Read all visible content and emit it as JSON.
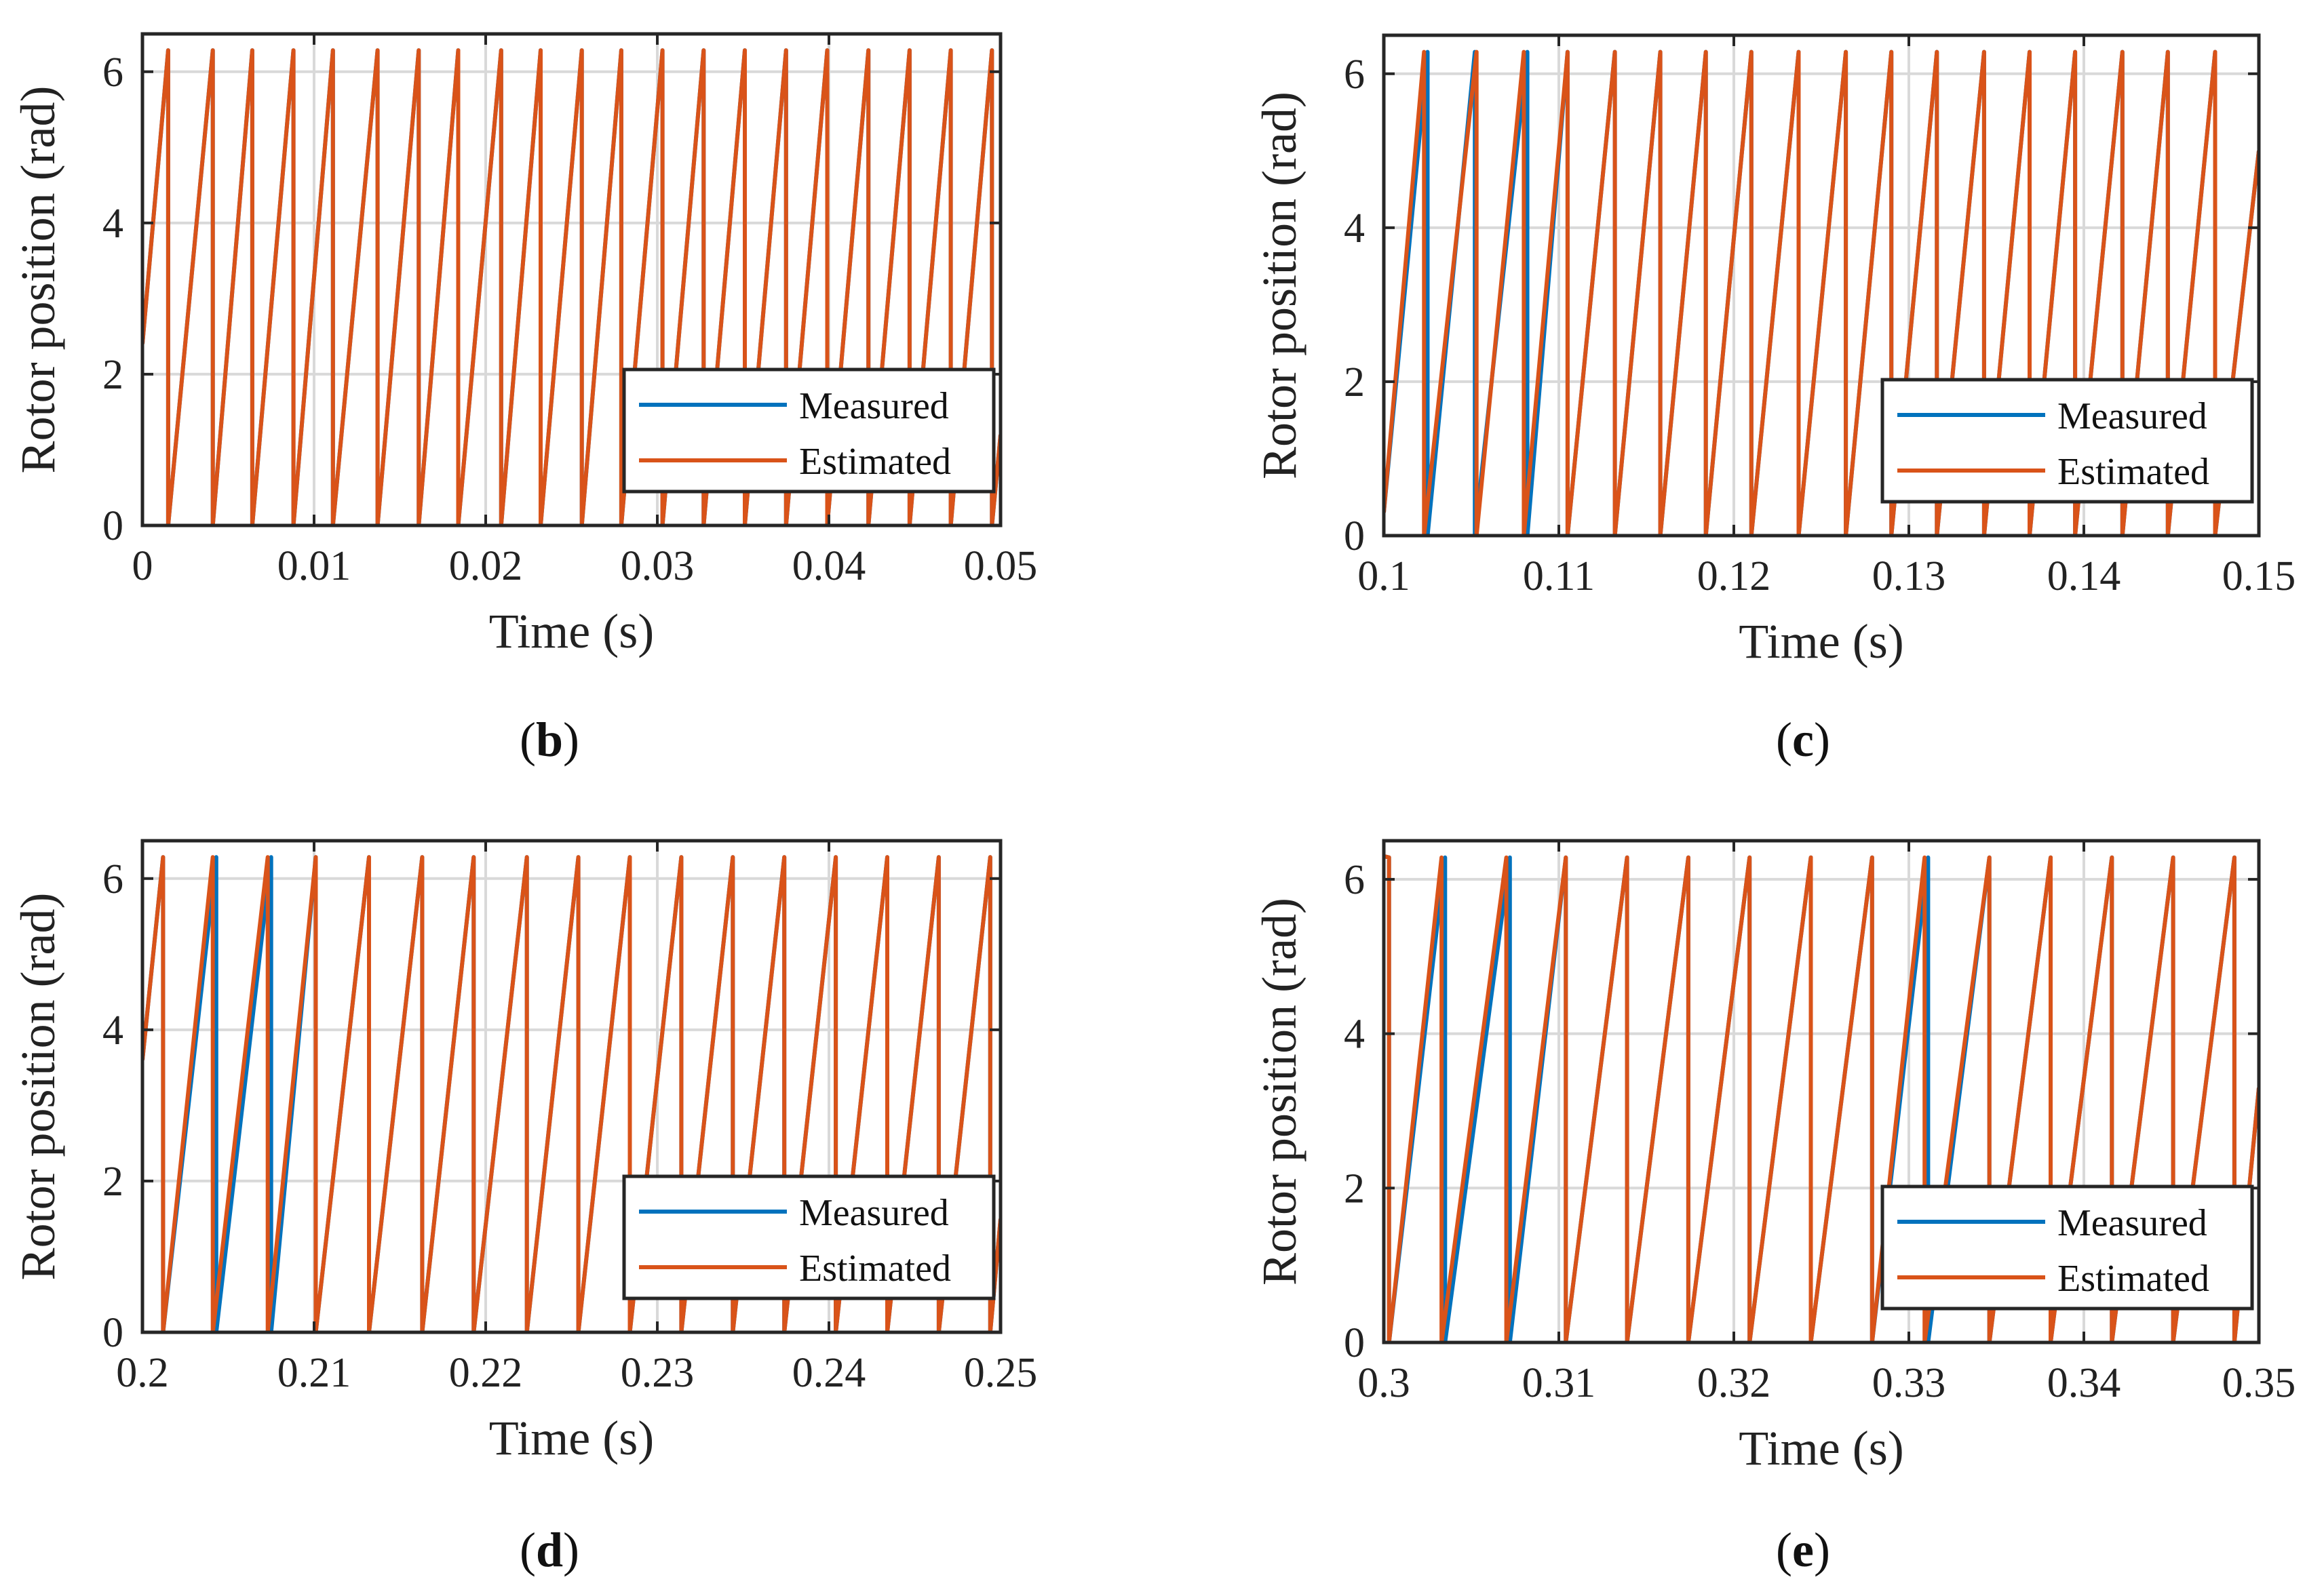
{
  "colors": {
    "measured": "#0072BD",
    "estimated": "#D95319",
    "grid": "#d9d9d9",
    "axes": "#262626"
  },
  "chart_data": [
    {
      "type": "line",
      "panel": "b",
      "xlabel": "Time (s)",
      "ylabel": "Rotor position (rad)",
      "xlim": [
        0,
        0.05
      ],
      "ylim": [
        0,
        6.5
      ],
      "xticks": [
        0,
        0.01,
        0.02,
        0.03,
        0.04,
        0.05
      ],
      "xtick_labels": [
        "0",
        "0.01",
        "0.02",
        "0.03",
        "0.04",
        "0.05"
      ],
      "yticks": [
        0,
        2,
        4,
        6
      ],
      "ytick_labels": [
        "0",
        "2",
        "4",
        "6"
      ],
      "legend": [
        "Measured",
        "Estimated"
      ],
      "legend_position": "bottom-right",
      "series": [
        {
          "name": "Measured",
          "start_value": 2.4,
          "end_value": 1.2,
          "wraps": [
            0.0015,
            0.0041,
            0.0064,
            0.0088,
            0.0111,
            0.0137,
            0.0161,
            0.0184,
            0.0209,
            0.0232,
            0.0256,
            0.0279,
            0.0303,
            0.0327,
            0.0351,
            0.0375,
            0.0399,
            0.0423,
            0.0447,
            0.0471,
            0.0495
          ]
        },
        {
          "name": "Estimated",
          "start_value": 2.4,
          "end_value": 1.2,
          "wraps": [
            0.0015,
            0.0041,
            0.0064,
            0.0088,
            0.0111,
            0.0137,
            0.0161,
            0.0184,
            0.0209,
            0.0232,
            0.0256,
            0.0279,
            0.0303,
            0.0327,
            0.0351,
            0.0375,
            0.0399,
            0.0423,
            0.0447,
            0.0471,
            0.0495
          ]
        }
      ]
    },
    {
      "type": "line",
      "panel": "c",
      "xlabel": "Time (s)",
      "ylabel": "Rotor position (rad)",
      "xlim": [
        0.1,
        0.15
      ],
      "ylim": [
        0,
        6.5
      ],
      "xticks": [
        0.1,
        0.11,
        0.12,
        0.13,
        0.14,
        0.15
      ],
      "xtick_labels": [
        "0.1",
        "0.11",
        "0.12",
        "0.13",
        "0.14",
        "0.15"
      ],
      "yticks": [
        0,
        2,
        4,
        6
      ],
      "ytick_labels": [
        "0",
        "2",
        "4",
        "6"
      ],
      "legend": [
        "Measured",
        "Estimated"
      ],
      "legend_position": "bottom-right",
      "series": [
        {
          "name": "Measured",
          "start_value": 0.3,
          "end_value": 5.0,
          "wraps": [
            0.1025,
            0.1052,
            0.1082,
            0.1105,
            0.1132,
            0.1158,
            0.1184,
            0.121,
            0.1237,
            0.1264,
            0.129,
            0.1316,
            0.1343,
            0.1369,
            0.1395,
            0.1422,
            0.1448,
            0.1475
          ]
        },
        {
          "name": "Estimated",
          "start_value": 0.3,
          "end_value": 5.0,
          "wraps": [
            0.1023,
            0.1053,
            0.108,
            0.1105,
            0.1132,
            0.1158,
            0.1184,
            0.121,
            0.1237,
            0.1264,
            0.129,
            0.1316,
            0.1343,
            0.1369,
            0.1395,
            0.1422,
            0.1448,
            0.1475
          ]
        }
      ]
    },
    {
      "type": "line",
      "panel": "d",
      "xlabel": "Time (s)",
      "ylabel": "Rotor position (rad)",
      "xlim": [
        0.2,
        0.25
      ],
      "ylim": [
        0,
        6.5
      ],
      "xticks": [
        0.2,
        0.21,
        0.22,
        0.23,
        0.24,
        0.25
      ],
      "xtick_labels": [
        "0.2",
        "0.21",
        "0.22",
        "0.23",
        "0.24",
        "0.25"
      ],
      "yticks": [
        0,
        2,
        4,
        6
      ],
      "ytick_labels": [
        "0",
        "2",
        "4",
        "6"
      ],
      "legend": [
        "Measured",
        "Estimated"
      ],
      "legend_position": "bottom-right",
      "series": [
        {
          "name": "Measured",
          "start_value": 3.6,
          "end_value": 1.5,
          "wraps": [
            0.2012,
            0.2043,
            0.2075,
            0.2101,
            0.2132,
            0.2163,
            0.2193,
            0.2224,
            0.2254,
            0.2284,
            0.2314,
            0.2344,
            0.2374,
            0.2404,
            0.2434,
            0.2464,
            0.2494
          ]
        },
        {
          "name": "Estimated",
          "start_value": 3.6,
          "end_value": 1.5,
          "wraps": [
            0.2012,
            0.2041,
            0.2073,
            0.2101,
            0.2132,
            0.2163,
            0.2193,
            0.2224,
            0.2254,
            0.2284,
            0.2314,
            0.2344,
            0.2374,
            0.2404,
            0.2434,
            0.2464,
            0.2494
          ]
        }
      ]
    },
    {
      "type": "line",
      "panel": "e",
      "xlabel": "Time (s)",
      "ylabel": "Rotor position (rad)",
      "xlim": [
        0.3,
        0.35
      ],
      "ylim": [
        0,
        6.5
      ],
      "xticks": [
        0.3,
        0.31,
        0.32,
        0.33,
        0.34,
        0.35
      ],
      "xtick_labels": [
        "0.3",
        "0.31",
        "0.32",
        "0.33",
        "0.34",
        "0.35"
      ],
      "yticks": [
        0,
        2,
        4,
        6
      ],
      "ytick_labels": [
        "0",
        "2",
        "4",
        "6"
      ],
      "legend": [
        "Measured",
        "Estimated"
      ],
      "legend_position": "bottom-right",
      "series": [
        {
          "name": "Measured",
          "start_value": 6.3,
          "end_value": 3.3,
          "wraps": [
            0.3003,
            0.3035,
            0.3072,
            0.3104,
            0.3139,
            0.3174,
            0.3209,
            0.3244,
            0.3279,
            0.3311,
            0.3346,
            0.3381,
            0.3416,
            0.3451,
            0.3486
          ]
        },
        {
          "name": "Estimated",
          "start_value": 6.3,
          "end_value": 3.3,
          "wraps": [
            0.3003,
            0.3033,
            0.307,
            0.3104,
            0.3139,
            0.3174,
            0.3209,
            0.3244,
            0.3279,
            0.3309,
            0.3346,
            0.3381,
            0.3416,
            0.3451,
            0.3486
          ]
        }
      ]
    }
  ],
  "captions": [
    {
      "open": "(",
      "letter": "b",
      "close": ")"
    },
    {
      "open": "(",
      "letter": "c",
      "close": ")"
    },
    {
      "open": "(",
      "letter": "d",
      "close": ")"
    },
    {
      "open": "(",
      "letter": "e",
      "close": ")"
    }
  ]
}
